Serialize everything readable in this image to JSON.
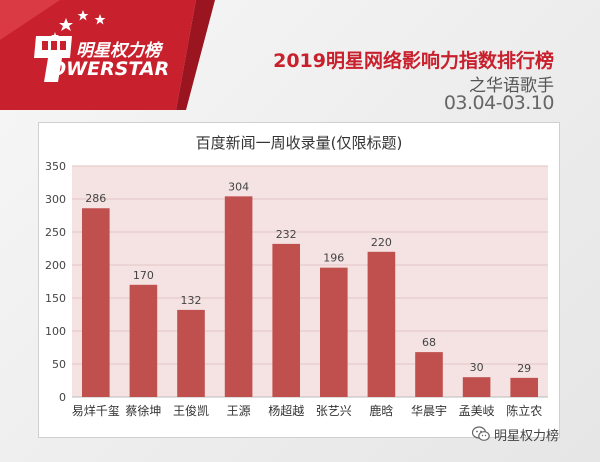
{
  "header": {
    "logo_cn": "明星权力榜",
    "logo_en": "OWERSTAR",
    "title": "2019明星网络影响力指数排行榜",
    "subtitle": "之华语歌手",
    "date_range": "03.04-03.10"
  },
  "watermark": {
    "icon": "wechat-icon",
    "text": "明星权力榜"
  },
  "colors": {
    "bar": "#c0504d",
    "brand_red": "#c8202d",
    "plot_bg": "#f5e3e3"
  },
  "chart_data": {
    "type": "bar",
    "title": "百度新闻一周收录量(仅限标题)",
    "categories": [
      "易烊千玺",
      "蔡徐坤",
      "王俊凯",
      "王源",
      "杨超越",
      "张艺兴",
      "鹿晗",
      "华晨宇",
      "孟美岐",
      "陈立农"
    ],
    "values": [
      286,
      170,
      132,
      304,
      232,
      196,
      220,
      68,
      30,
      29
    ],
    "ylim": [
      0,
      350
    ],
    "yticks": [
      0,
      50,
      100,
      150,
      200,
      250,
      300,
      350
    ],
    "grid": true,
    "xlabel": "",
    "ylabel": ""
  }
}
